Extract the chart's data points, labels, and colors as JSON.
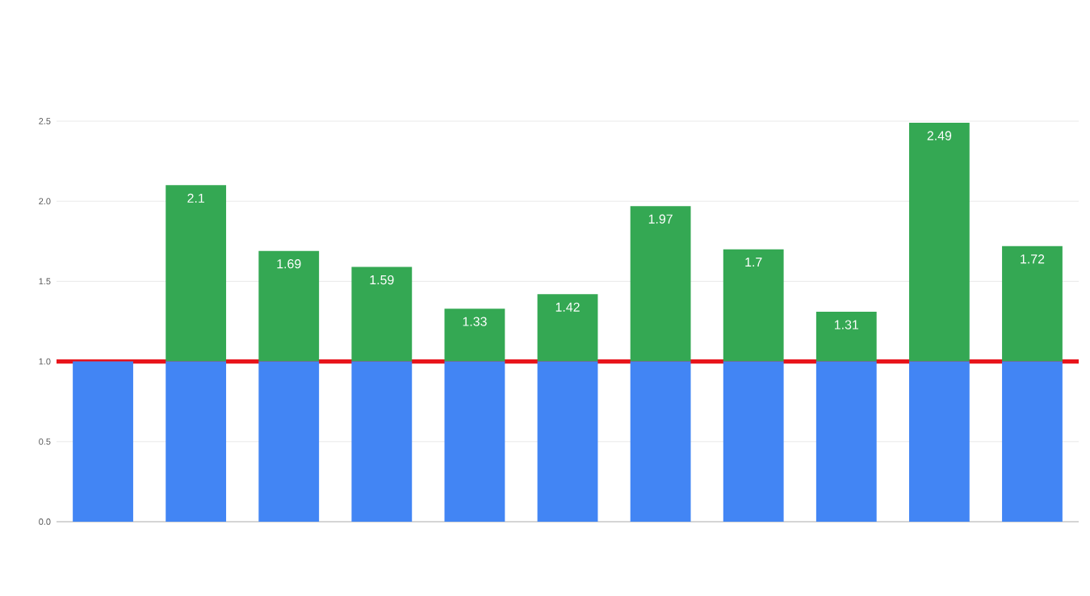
{
  "chart_data": {
    "type": "bar",
    "stacked": true,
    "categories": [
      null,
      null,
      null,
      null,
      null,
      null,
      null,
      null,
      null,
      null,
      null
    ],
    "series": [
      {
        "color": "#4285f4",
        "values": [
          1,
          1,
          1,
          1,
          1,
          1,
          1,
          1,
          1,
          1,
          1
        ]
      },
      {
        "color": "#34a853",
        "values": [
          0,
          1.1,
          0.69,
          0.59,
          0.33,
          0.42,
          0.97,
          0.7,
          0.31,
          1.49,
          0.72
        ]
      }
    ],
    "totals": [
      null,
      "2.1",
      "1.69",
      "1.59",
      "1.33",
      "1.42",
      "1.97",
      "1.7",
      "1.31",
      "2.49",
      "1.72"
    ],
    "ylim": [
      0,
      2.5
    ],
    "yticks": [
      {
        "value": 0,
        "label": "0.0"
      },
      0.5,
      {
        "value": 1,
        "label": "1.0"
      },
      1.5,
      {
        "value": 2,
        "label": "2.0"
      },
      2.5
    ],
    "grid": "y",
    "tick_labels": "y",
    "ref_lines": [
      {
        "axis": "y",
        "value": 1,
        "color": "#e8141b"
      }
    ]
  }
}
